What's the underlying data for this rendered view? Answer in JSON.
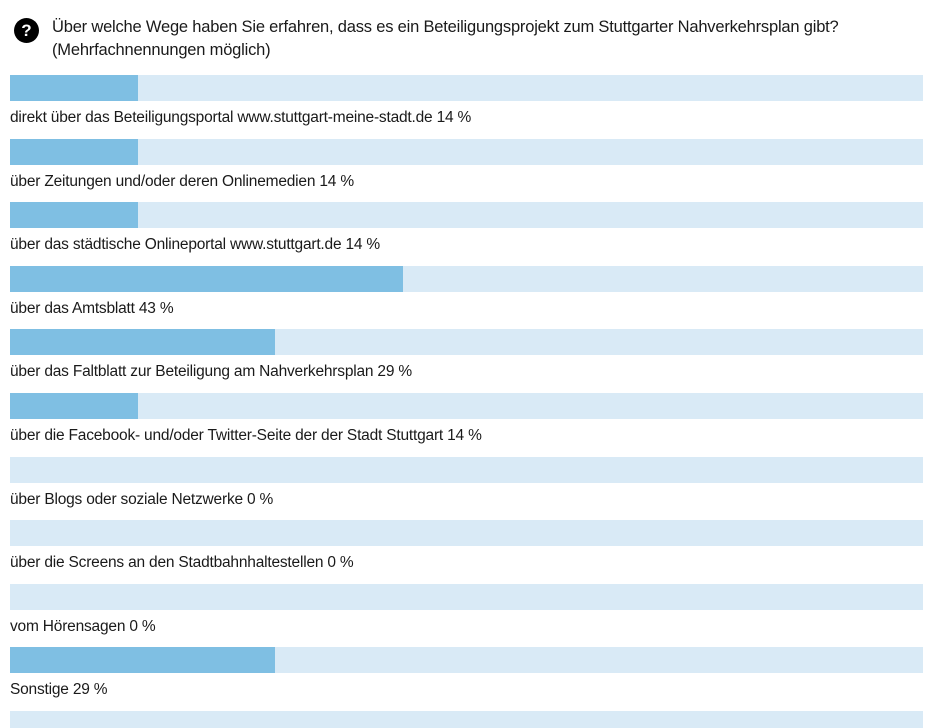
{
  "header": {
    "icon_glyph": "?",
    "question": "Über welche Wege haben Sie erfahren, dass es ein Beteiligungsprojekt zum Stuttgarter Nahverkehrsplan gibt?",
    "note": "(Mehrfachnennungen möglich)"
  },
  "colors": {
    "bar_fill": "#7FBFE3",
    "bar_track": "#D9EAF6",
    "text": "#1A1A1A",
    "icon_bg": "#000000",
    "icon_fg": "#FFFFFF"
  },
  "rows": [
    {
      "label": "direkt über das Beteiligungsportal www.stuttgart-meine-stadt.de",
      "pct": 14,
      "display": "direkt über das Beteiligungsportal www.stuttgart-meine-stadt.de 14 %"
    },
    {
      "label": "über Zeitungen und/oder deren Onlinemedien",
      "pct": 14,
      "display": "über Zeitungen und/oder deren Onlinemedien 14 %"
    },
    {
      "label": "über das städtische Onlineportal www.stuttgart.de",
      "pct": 14,
      "display": "über das städtische Onlineportal www.stuttgart.de 14 %"
    },
    {
      "label": "über das Amtsblatt",
      "pct": 43,
      "display": "über das Amtsblatt 43 %"
    },
    {
      "label": "über das Faltblatt zur Beteiligung am Nahverkehrsplan",
      "pct": 29,
      "display": "über das Faltblatt zur Beteiligung am Nahverkehrsplan 29 %"
    },
    {
      "label": "über die Facebook- und/oder Twitter-Seite der der Stadt Stuttgart",
      "pct": 14,
      "display": "über die Facebook- und/oder Twitter-Seite der der Stadt Stuttgart 14 %"
    },
    {
      "label": "über Blogs oder soziale Netzwerke",
      "pct": 0,
      "display": "über Blogs oder soziale Netzwerke 0 %"
    },
    {
      "label": "über die Screens an den Stadtbahnhaltestellen",
      "pct": 0,
      "display": "über die Screens an den Stadtbahnhaltestellen 0 %"
    },
    {
      "label": "vom Hörensagen",
      "pct": 0,
      "display": "vom Hörensagen 0 %"
    },
    {
      "label": "Sonstige",
      "pct": 29,
      "display": "Sonstige 29 %"
    }
  ],
  "partial_row": {
    "pct": 0
  },
  "chart_data": {
    "type": "bar",
    "orientation": "horizontal",
    "title": "Über welche Wege haben Sie erfahren, dass es ein Beteiligungsprojekt zum Stuttgarter Nahverkehrsplan gibt?",
    "subtitle": "(Mehrfachnennungen möglich)",
    "categories": [
      "direkt über das Beteiligungsportal www.stuttgart-meine-stadt.de",
      "über Zeitungen und/oder deren Onlinemedien",
      "über das städtische Onlineportal www.stuttgart.de",
      "über das Amtsblatt",
      "über das Faltblatt zur Beteiligung am Nahverkehrsplan",
      "über die Facebook- und/oder Twitter-Seite der der Stadt Stuttgart",
      "über Blogs oder soziale Netzwerke",
      "über die Screens an den Stadtbahnhaltestellen",
      "vom Hörensagen",
      "Sonstige"
    ],
    "values": [
      14,
      14,
      14,
      43,
      29,
      14,
      0,
      0,
      0,
      29
    ],
    "unit": "%",
    "xlim": [
      0,
      100
    ],
    "grid": false,
    "legend": false,
    "bar_color": "#7FBFE3",
    "track_color": "#D9EAF6"
  }
}
